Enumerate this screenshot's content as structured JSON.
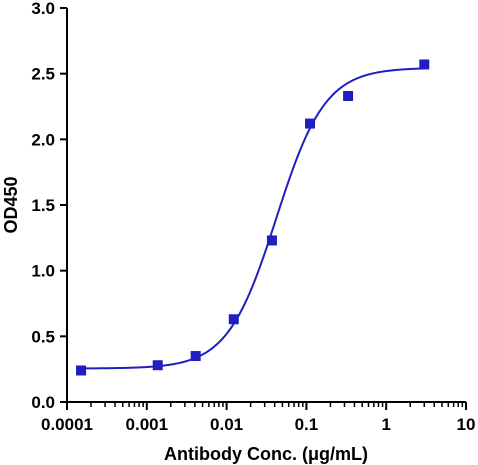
{
  "chart_data": {
    "type": "scatter",
    "title": "",
    "xlabel": "Antibody Conc. (μg/mL)",
    "ylabel": "OD450",
    "x_scale": "log",
    "xlim": [
      0.0001,
      10
    ],
    "ylim": [
      0,
      3.0
    ],
    "x_ticks": [
      "0.0001",
      "0.001",
      "0.01",
      "0.1",
      "1",
      "10"
    ],
    "y_ticks": [
      "0.0",
      "0.5",
      "1.0",
      "1.5",
      "2.0",
      "2.5",
      "3.0"
    ],
    "grid": false,
    "legend": "none",
    "series": [
      {
        "marker": "square",
        "color": "#1f1fbf",
        "x": [
          0.00015,
          0.00137,
          0.0041,
          0.0123,
          0.037,
          0.111,
          0.333,
          3.0
        ],
        "y": [
          0.24,
          0.28,
          0.35,
          0.63,
          1.23,
          2.12,
          2.33,
          2.57
        ]
      }
    ],
    "fit_curve": {
      "type": "4PL",
      "color": "#1f1fbf",
      "bottom": 0.255,
      "top": 2.545,
      "ec50": 0.042,
      "hill": 1.42
    }
  }
}
